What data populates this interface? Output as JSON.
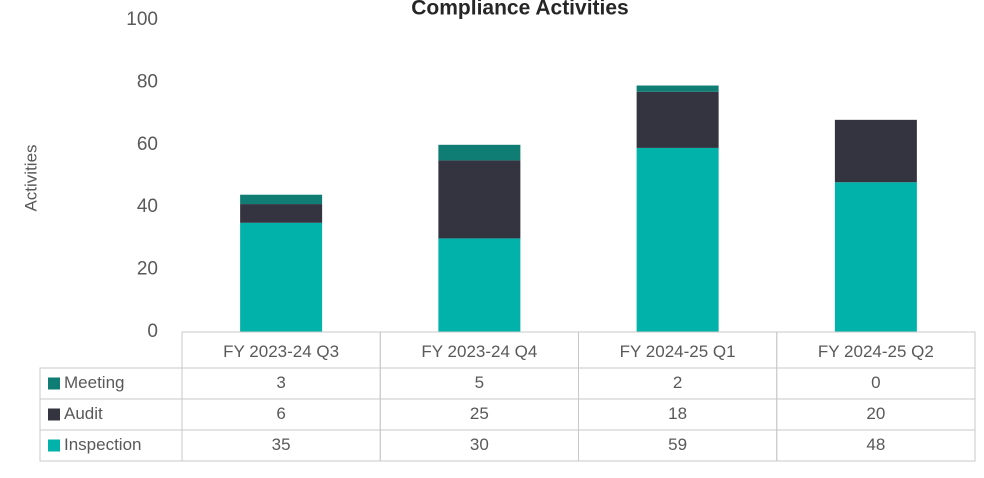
{
  "chart_data": {
    "type": "bar",
    "stacked": true,
    "title": "Compliance Activities",
    "y_label": "Activities",
    "categories": [
      "FY 2023-24 Q3",
      "FY 2023-24 Q4",
      "FY 2024-25 Q1",
      "FY 2024-25 Q2"
    ],
    "series": [
      {
        "name": "Meeting",
        "color": "#0f7d74",
        "values": [
          3,
          5,
          2,
          0
        ]
      },
      {
        "name": "Audit",
        "color": "#33343f",
        "values": [
          6,
          25,
          18,
          20
        ]
      },
      {
        "name": "Inspection",
        "color": "#00b2a9",
        "values": [
          35,
          30,
          59,
          48
        ]
      }
    ],
    "ylim": [
      0,
      100
    ],
    "yticks": [
      0,
      20,
      40,
      60,
      80,
      100
    ],
    "grid": false,
    "data_table": true
  }
}
